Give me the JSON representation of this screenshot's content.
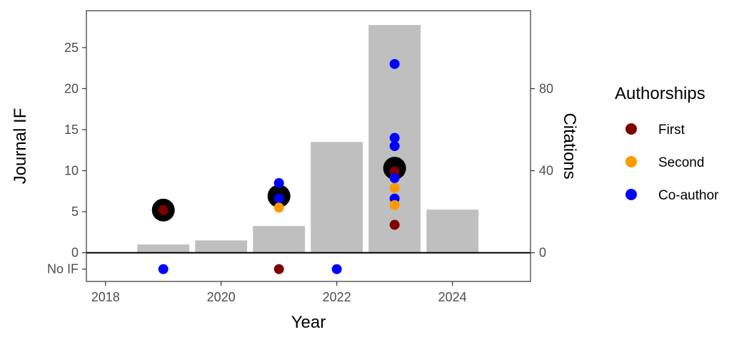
{
  "chart_data": {
    "type": "bar+scatter",
    "xlabel": "Year",
    "ylabel_left": "Journal IF",
    "ylabel_right": "Citations",
    "xlim": [
      2017.67,
      2025.35
    ],
    "x_ticks": [
      2018,
      2020,
      2022,
      2024
    ],
    "ylim_left": [
      -3.5,
      29.5
    ],
    "y_ticks_left": [
      0,
      5,
      10,
      15,
      20,
      25
    ],
    "no_if_label": "No IF",
    "y_ticks_right": [
      0,
      40,
      80
    ],
    "citations_bars": {
      "years": [
        2019,
        2020,
        2021,
        2022,
        2023,
        2024
      ],
      "values": [
        4,
        6,
        13,
        54,
        111,
        21
      ],
      "color": "#bfbfbf"
    },
    "mean_if": {
      "years": [
        2019,
        2021,
        2023
      ],
      "values": [
        5.2,
        6.9,
        10.3
      ],
      "color": "#000000"
    },
    "legend": {
      "title": "Authorships",
      "entries": [
        {
          "label": "First",
          "color": "#800000"
        },
        {
          "label": "Second",
          "color": "#ff9900"
        },
        {
          "label": "Co-author",
          "color": "#0000ff"
        }
      ]
    },
    "papers": [
      {
        "year": 2019,
        "if": 5.2,
        "role": "First"
      },
      {
        "year": 2019,
        "if": null,
        "role": "Co-author"
      },
      {
        "year": 2021,
        "if": 8.5,
        "role": "Co-author"
      },
      {
        "year": 2021,
        "if": 6.6,
        "role": "Co-author"
      },
      {
        "year": 2021,
        "if": 5.5,
        "role": "Second"
      },
      {
        "year": 2021,
        "if": null,
        "role": "First"
      },
      {
        "year": 2022,
        "if": null,
        "role": "Co-author"
      },
      {
        "year": 2023,
        "if": 23.0,
        "role": "Co-author"
      },
      {
        "year": 2023,
        "if": 14.0,
        "role": "Co-author"
      },
      {
        "year": 2023,
        "if": 13.0,
        "role": "Co-author"
      },
      {
        "year": 2023,
        "if": 9.9,
        "role": "First"
      },
      {
        "year": 2023,
        "if": 9.1,
        "role": "Co-author"
      },
      {
        "year": 2023,
        "if": 7.9,
        "role": "Second"
      },
      {
        "year": 2023,
        "if": 6.6,
        "role": "Co-author"
      },
      {
        "year": 2023,
        "if": 5.8,
        "role": "Second"
      },
      {
        "year": 2023,
        "if": 3.4,
        "role": "First"
      }
    ]
  }
}
